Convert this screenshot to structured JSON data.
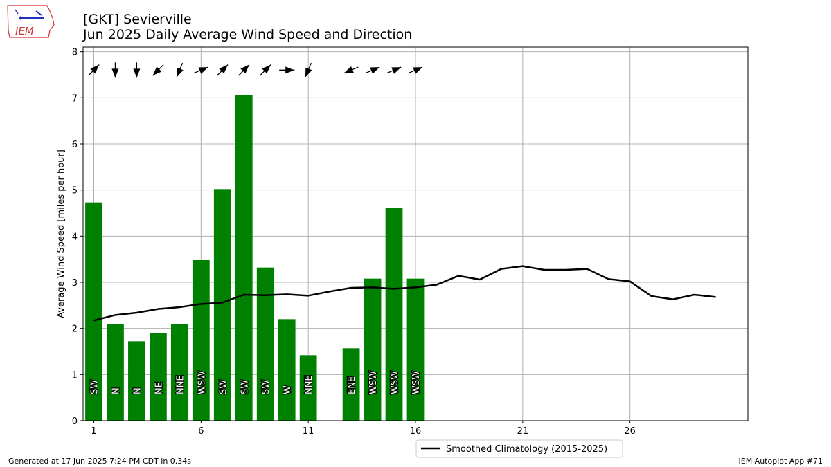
{
  "title_line1": "[GKT] Sevierville",
  "title_line2": "Jun 2025 Daily Average Wind Speed and Direction",
  "logo_text": "IEM",
  "footer_left": "Generated at 17 Jun 2025 7:24 PM CDT in 0.34s",
  "footer_right": "IEM Autoplot App #71",
  "colors": {
    "bar": "#008000",
    "climo": "#000000",
    "grid": "#b0b0b0",
    "arrow": "#000000"
  },
  "chart_data": {
    "type": "bar",
    "ylabel": "Average Wind Speed [miles per hour]",
    "xlim": [
      0.5,
      31.5
    ],
    "ylim": [
      0,
      8.1
    ],
    "xticks": [
      1,
      6,
      11,
      16,
      21,
      26
    ],
    "yticks": [
      0,
      1,
      2,
      3,
      4,
      5,
      6,
      7,
      8
    ],
    "grid": true,
    "legend_position": "below the plot, right of center",
    "days": [
      1,
      2,
      3,
      4,
      5,
      6,
      7,
      8,
      9,
      10,
      11,
      13,
      14,
      15,
      16
    ],
    "values": [
      4.73,
      2.1,
      1.72,
      1.9,
      2.1,
      3.48,
      5.02,
      7.06,
      3.32,
      2.2,
      1.42,
      1.57,
      3.08,
      4.61,
      3.08
    ],
    "directions": [
      "SW",
      "N",
      "N",
      "NE",
      "NNE",
      "WSW",
      "SW",
      "SW",
      "SW",
      "W",
      "NNE",
      "ENE",
      "WSW",
      "WSW",
      "WSW"
    ],
    "arrow_degrees": [
      225,
      0,
      0,
      45,
      22.5,
      247.5,
      225,
      225,
      225,
      270,
      22.5,
      67.5,
      247.5,
      247.5,
      247.5
    ],
    "climatology": {
      "name": "Smoothed Climatology (2015-2025)",
      "x": [
        1,
        2,
        3,
        4,
        5,
        6,
        7,
        8,
        9,
        10,
        11,
        12,
        13,
        14,
        15,
        16,
        17,
        18,
        19,
        20,
        21,
        22,
        23,
        24,
        25,
        26,
        27,
        28,
        29,
        30
      ],
      "y": [
        2.17,
        2.29,
        2.34,
        2.42,
        2.46,
        2.53,
        2.56,
        2.73,
        2.72,
        2.74,
        2.71,
        2.8,
        2.88,
        2.89,
        2.86,
        2.89,
        2.95,
        3.14,
        3.06,
        3.29,
        3.35,
        3.27,
        3.27,
        3.29,
        3.07,
        3.02,
        2.7,
        2.63,
        2.73,
        2.68
      ]
    }
  }
}
